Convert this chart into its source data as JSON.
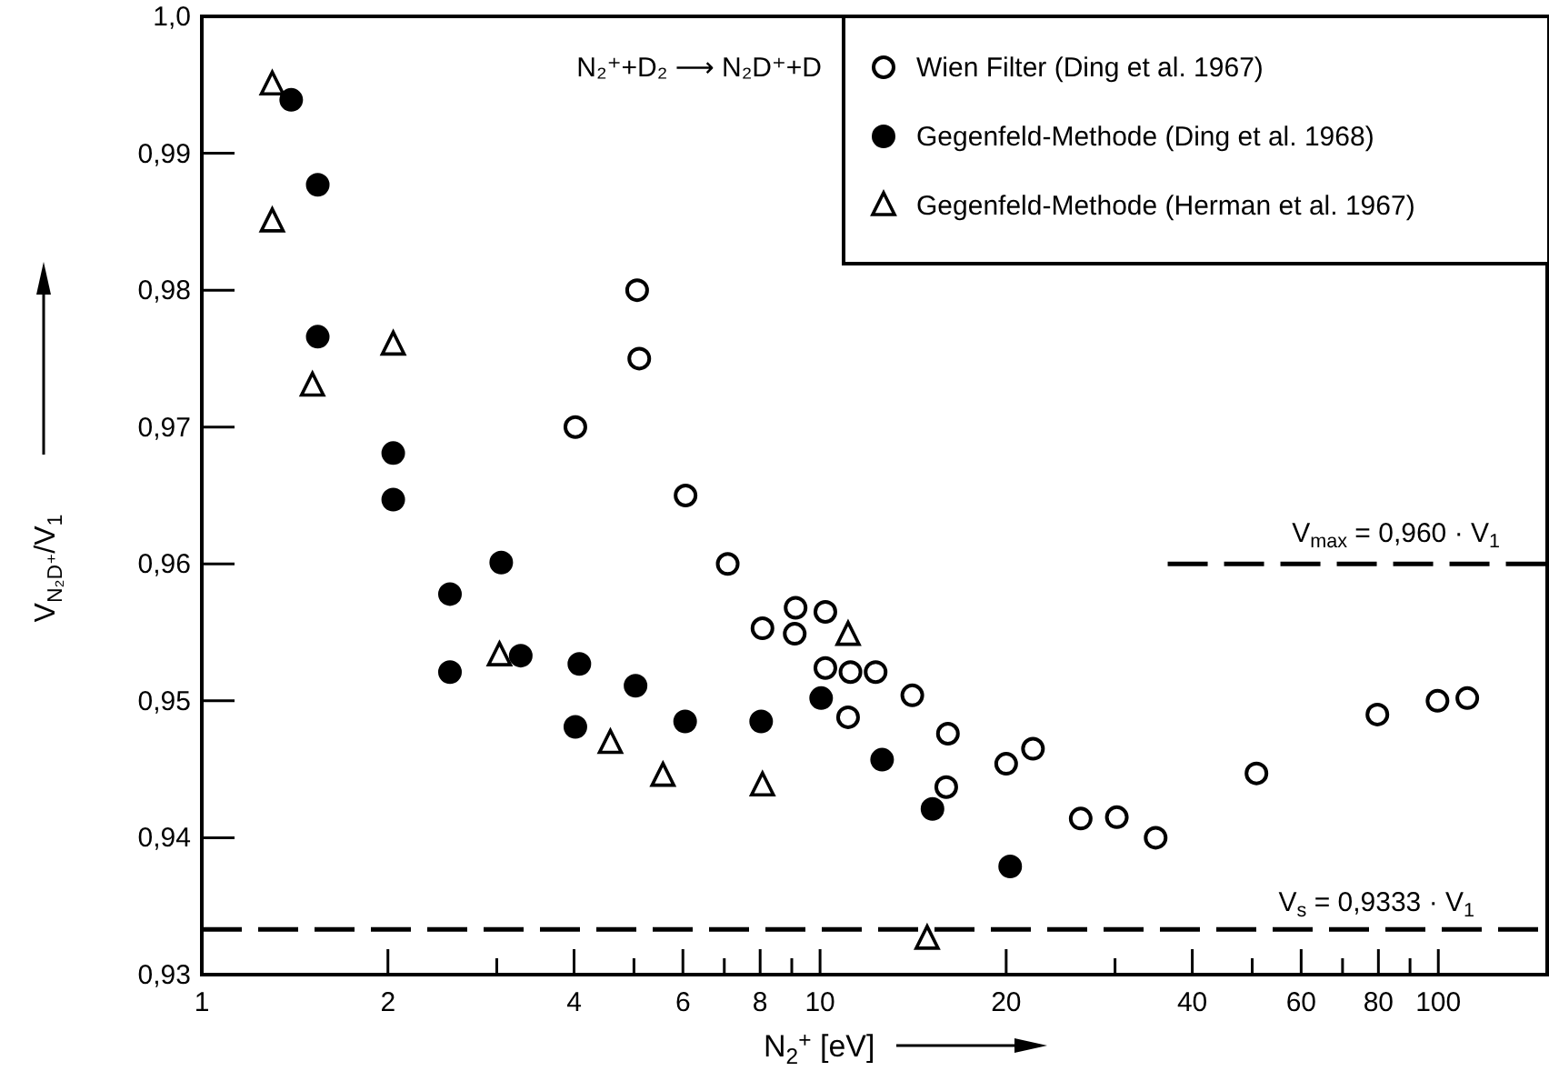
{
  "chart_data": {
    "type": "scatter",
    "xlabel": "N$_{2}$$^{+}$ [eV]",
    "ylabel": "V$_{N₂D⁺}$/V$_{1}$",
    "annotations": [
      "N₂⁺+D₂ ⟶ N₂D⁺+D"
    ],
    "log": "x",
    "xlim": [
      1,
      150
    ],
    "ylim": [
      0.93,
      1.0
    ],
    "xticks": [
      1,
      2,
      {
        "value": 3,
        "label": null
      },
      4,
      {
        "value": 5,
        "label": null
      },
      6,
      {
        "value": 7,
        "label": null
      },
      8,
      {
        "value": 9,
        "label": null
      },
      10,
      20,
      {
        "value": 30,
        "label": null
      },
      40,
      {
        "value": 50,
        "label": null
      },
      60,
      {
        "value": 70,
        "label": null
      },
      80,
      {
        "value": 90,
        "label": null
      },
      100
    ],
    "yticks": [
      {
        "value": 0.93,
        "label": "0,93"
      },
      {
        "value": 0.94,
        "label": "0,94"
      },
      {
        "value": 0.95,
        "label": "0,95"
      },
      {
        "value": 0.96,
        "label": "0,96"
      },
      {
        "value": 0.97,
        "label": "0,97"
      },
      {
        "value": 0.98,
        "label": "0,98"
      },
      {
        "value": 0.99,
        "label": "0,99"
      },
      {
        "value": 1.0,
        "label": "1,0"
      }
    ],
    "grid": false,
    "legend": "top right",
    "series": [
      {
        "name": "Wien Filter (Ding et al. 1967)",
        "color": "#000000",
        "marker": "circle-open",
        "x": [
          5.06,
          5.1,
          4.02,
          6.06,
          7.09,
          8.07,
          9.13,
          9.1,
          10.2,
          10.2,
          11.2,
          12.3,
          11.1,
          14.1,
          16.1,
          16.0,
          20.0,
          22.1,
          26.4,
          30.2,
          34.9,
          50.8,
          79.7,
          99.7,
          111.4
        ],
        "values": [
          0.98,
          0.975,
          0.97,
          0.965,
          0.96,
          0.9553,
          0.9568,
          0.9549,
          0.9565,
          0.9524,
          0.9521,
          0.9521,
          0.9488,
          0.9504,
          0.9476,
          0.9437,
          0.9454,
          0.9465,
          0.9414,
          0.9415,
          0.94,
          0.9447,
          0.949,
          0.95,
          0.9502
        ]
      },
      {
        "name": "Gegenfeld-Methode (Ding et al. 1968)",
        "color": "#000000",
        "marker": "circle",
        "x": [
          1.395,
          1.54,
          1.54,
          2.04,
          2.04,
          2.52,
          2.52,
          3.05,
          3.28,
          4.08,
          4.02,
          5.03,
          6.05,
          8.03,
          10.04,
          12.6,
          15.2,
          20.3
        ],
        "values": [
          0.9939,
          0.9877,
          0.9766,
          0.9681,
          0.9647,
          0.9578,
          0.9521,
          0.9601,
          0.9533,
          0.9527,
          0.9481,
          0.9511,
          0.9485,
          0.9485,
          0.9502,
          0.9457,
          0.9421,
          0.9379
        ]
      },
      {
        "name": "Gegenfeld-Methode (Herman et al. 1967)",
        "color": "#000000",
        "marker": "triangle-open",
        "x": [
          1.3,
          1.3,
          1.51,
          2.04,
          3.03,
          4.58,
          5.57,
          8.07,
          11.1,
          14.9
        ],
        "values": [
          0.995,
          0.985,
          0.973,
          0.976,
          0.9533,
          0.9469,
          0.9445,
          0.9438,
          0.9548,
          0.9326
        ]
      },
      {
        "type": "line",
        "name": "V$_{max}$ = 0,960 · V$_{1}$",
        "color": "#000000",
        "line_style": "dashed",
        "marker": "none",
        "x": [
          36.5,
          150
        ],
        "values": [
          0.96,
          0.96
        ]
      }
    ],
    "ref_lines": [
      {
        "axis": "y",
        "value": 0.9333,
        "label": "V$_{s}$ = 0,9333 · V$_{1}$",
        "color": "#000000",
        "line_style": "dashed"
      }
    ]
  }
}
